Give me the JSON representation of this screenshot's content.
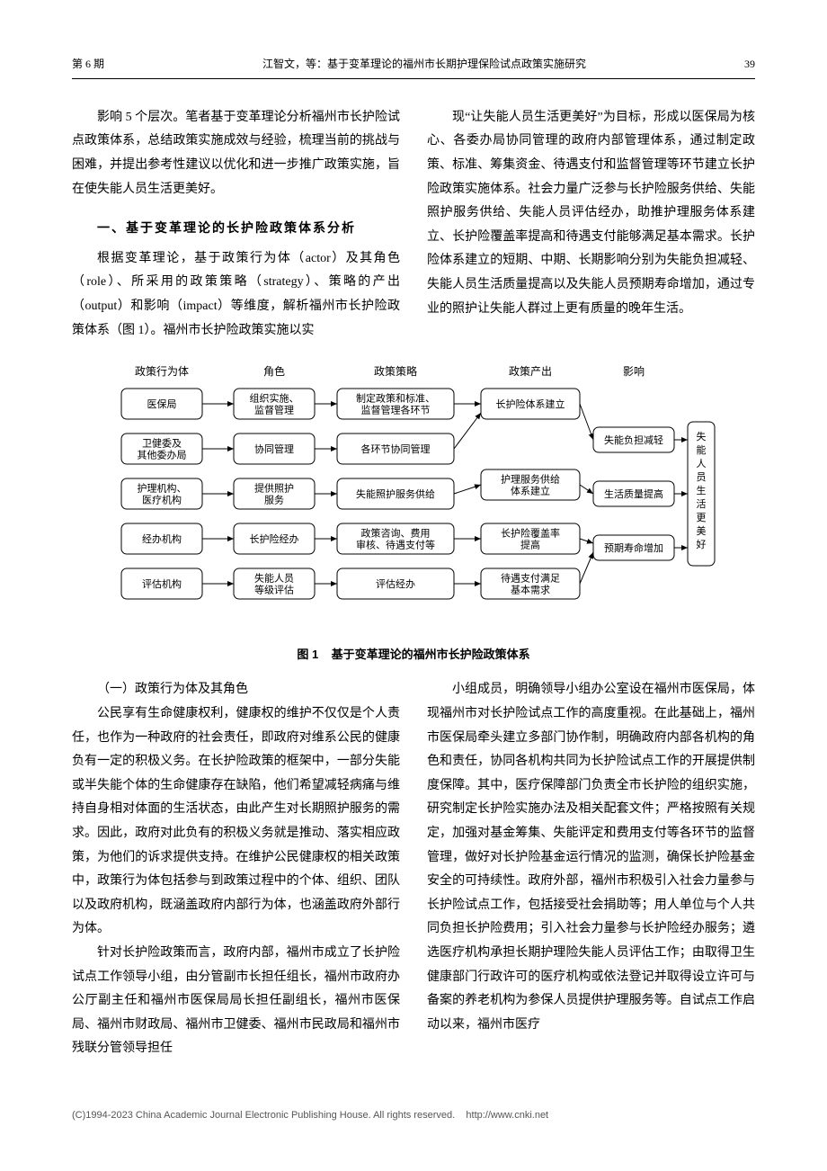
{
  "header": {
    "issue": "第 6 期",
    "running": "江智文，等：基于变革理论的福州市长期护理保险试点政策实施研究",
    "page": "39"
  },
  "intro_top_left": "影响 5 个层次。笔者基于变革理论分析福州市长护险试点政策体系，总结政策实施成效与经验，梳理当前的挑战与困难，并提出参考性建议以优化和进一步推广政策实施，旨在使失能人员生活更美好。",
  "section1_title": "一、基于变革理论的长护险政策体系分析",
  "section1_p1": "根据变革理论，基于政策行为体（actor）及其角色（role）、所采用的政策策略（strategy）、策略的产出（output）和影响（impact）等维度，解析福州市长护险政策体系（图 1）。福州市长护险政策实施以实",
  "intro_top_right": "现“让失能人员生活更美好”为目标，形成以医保局为核心、各委办局协同管理的政府内部管理体系，通过制定政策、标准、筹集资金、待遇支付和监督管理等环节建立长护险政策实施体系。社会力量广泛参与长护险服务供给、失能照护服务供给、失能人员评估经办，助推护理服务体系建立、长护险覆盖率提高和待遇支付能够满足基本需求。长护险体系建立的短期、中期、长期影响分别为失能负担减轻、失能人员生活质量提高以及失能人员预期寿命增加，通过专业的照护让失能人群过上更有质量的晚年生活。",
  "figure": {
    "caption_no": "图 1",
    "caption_text": "基于变革理论的福州市长护险政策体系",
    "col_headers": [
      "政策行为体",
      "角色",
      "政策策略",
      "政策产出",
      "影响"
    ],
    "actors": [
      "医保局",
      "卫健委及\n其他委办局",
      "护理机构、\n医疗机构",
      "经办机构",
      "评估机构"
    ],
    "roles": [
      "组织实施、\n监督管理",
      "协同管理",
      "提供照护\n服务",
      "长护险经办",
      "失能人员\n等级评估"
    ],
    "strategies": [
      "制定政策和标准、\n监督管理各环节",
      "各环节协同管理",
      "失能照护服务供给",
      "政策咨询、费用\n审核、待遇支付等",
      "评估经办"
    ],
    "outputs": [
      "长护险体系建立",
      "护理服务供给\n体系建立",
      "长护险覆盖率\n提高",
      "待遇支付满足\n基本需求"
    ],
    "impacts": [
      "失能负担减轻",
      "生活质量提高",
      "预期寿命增加"
    ],
    "final_impact": "失能人员生活更美好",
    "colors": {
      "box_stroke": "#000000",
      "box_fill": "#ffffff",
      "arrow": "#000000",
      "header_text": "#000000"
    },
    "style": {
      "box_rx": 6,
      "stroke_width": 1,
      "font_size": 11,
      "header_font_size": 12
    }
  },
  "sub1_title": "（一）政策行为体及其角色",
  "sub1_p1": "公民享有生命健康权利，健康权的维护不仅仅是个人责任，也作为一种政府的社会责任，即政府对维系公民的健康负有一定的积极义务。在长护险政策的框架中，一部分失能或半失能个体的生命健康存在缺陷，他们希望减轻病痛与维持自身相对体面的生活状态，由此产生对长期照护服务的需求。因此，政府对此负有的积极义务就是推动、落实相应政策，为他们的诉求提供支持。在维护公民健康权的相关政策中，政策行为体包括参与到政策过程中的个体、组织、团队以及政府机构，既涵盖政府内部行为体，也涵盖政府外部行为体。",
  "sub1_p2": "针对长护险政策而言，政府内部，福州市成立了长护险试点工作领导小组，由分管副市长担任组长，福州市政府办公厅副主任和福州市医保局局长担任副组长，福州市医保局、福州市财政局、福州市卫健委、福州市民政局和福州市残联分管领导担任",
  "sub1_right": "小组成员，明确领导小组办公室设在福州市医保局，体现福州市对长护险试点工作的高度重视。在此基础上，福州市医保局牵头建立多部门协作制，明确政府内部各机构的角色和责任，协同各机构共同为长护险试点工作的开展提供制度保障。其中，医疗保障部门负责全市长护险的组织实施，研究制定长护险实施办法及相关配套文件；严格按照有关规定，加强对基金筹集、失能评定和费用支付等各环节的监督管理，做好对长护险基金运行情况的监测，确保长护险基金安全的可持续性。政府外部，福州市积极引入社会力量参与长护险试点工作，包括接受社会捐助等；用人单位与个人共同负担长护险费用；引入社会力量参与长护险经办服务；遴选医疗机构承担长期护理险失能人员评估工作；由取得卫生健康部门行政许可的医疗机构或依法登记并取得设立许可与备案的养老机构为参保人员提供护理服务等。自试点工作启动以来，福州市医疗",
  "footer": {
    "copyright": "(C)1994-2023 China Academic Journal Electronic Publishing House. All rights reserved.",
    "url": "http://www.cnki.net"
  }
}
